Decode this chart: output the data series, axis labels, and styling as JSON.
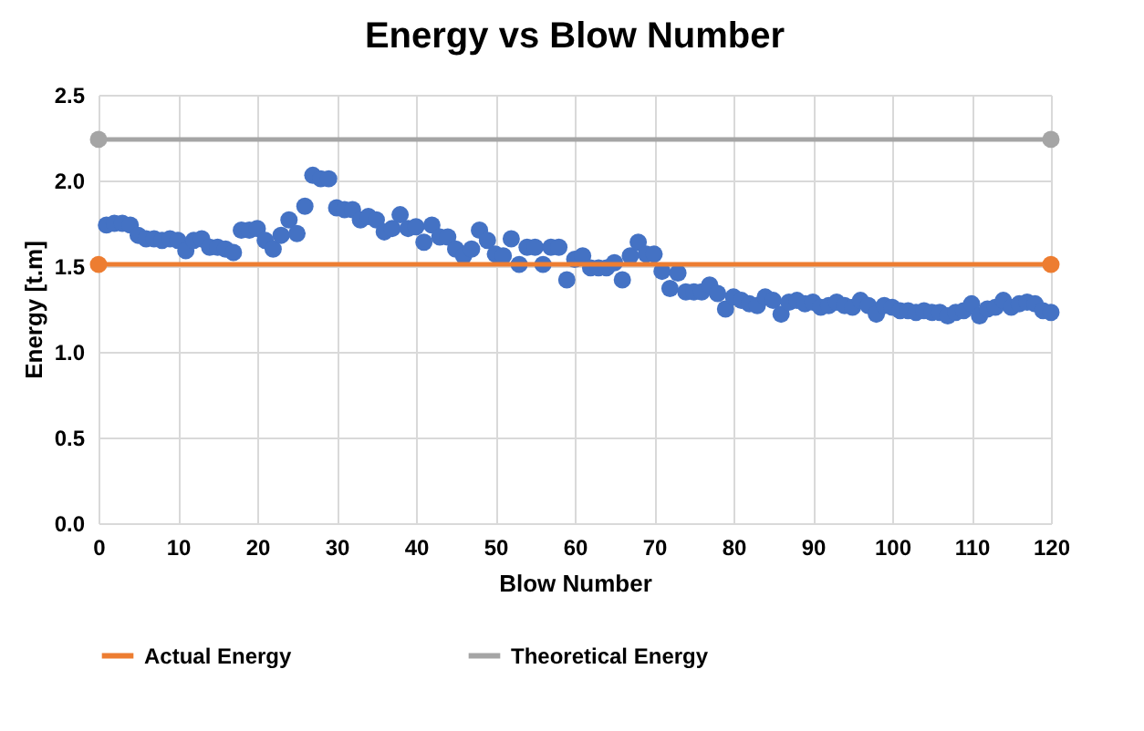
{
  "chart_data": {
    "type": "scatter",
    "title": "Energy vs Blow Number",
    "xlabel": "Blow Number",
    "ylabel": "Energy [t.m]",
    "xlim": [
      0,
      120
    ],
    "xticks": [
      0,
      10,
      20,
      30,
      40,
      50,
      60,
      70,
      80,
      90,
      100,
      110,
      120
    ],
    "ylim": [
      0,
      2.5
    ],
    "yticks": [
      {
        "value": 0,
        "label": "0.0"
      },
      0.5,
      {
        "value": 1,
        "label": "1.0"
      },
      1.5,
      {
        "value": 2,
        "label": "2.0"
      },
      2.5
    ],
    "grid": true,
    "legend": "bottom",
    "marker": "circle",
    "series": [
      {
        "color": "#4472c4",
        "x": [
          1,
          2,
          3,
          4,
          5,
          6,
          7,
          8,
          9,
          10,
          11,
          12,
          13,
          14,
          15,
          16,
          17,
          18,
          19,
          20,
          21,
          22,
          23,
          24,
          25,
          26,
          27,
          28,
          29,
          30,
          31,
          32,
          33,
          34,
          35,
          36,
          37,
          38,
          39,
          40,
          41,
          42,
          43,
          44,
          45,
          46,
          47,
          48,
          49,
          50,
          51,
          52,
          53,
          54,
          55,
          56,
          57,
          58,
          59,
          60,
          61,
          62,
          63,
          64,
          65,
          66,
          67,
          68,
          69,
          70,
          71,
          72,
          73,
          74,
          75,
          76,
          77,
          78,
          79,
          80,
          81,
          82,
          83,
          84,
          85,
          86,
          87,
          88,
          89,
          90,
          91,
          92,
          93,
          94,
          95,
          96,
          97,
          98,
          99,
          100,
          101,
          102,
          103,
          104,
          105,
          106,
          107,
          108,
          109,
          110,
          111,
          112,
          113,
          114,
          115,
          116,
          117,
          118,
          119,
          120
        ],
        "values": [
          1.74,
          1.75,
          1.75,
          1.74,
          1.68,
          1.66,
          1.66,
          1.65,
          1.66,
          1.65,
          1.59,
          1.65,
          1.66,
          1.61,
          1.61,
          1.6,
          1.58,
          1.71,
          1.71,
          1.72,
          1.65,
          1.6,
          1.68,
          1.77,
          1.69,
          1.85,
          2.03,
          2.01,
          2.01,
          1.84,
          1.83,
          1.83,
          1.77,
          1.79,
          1.77,
          1.7,
          1.72,
          1.8,
          1.72,
          1.73,
          1.64,
          1.74,
          1.67,
          1.67,
          1.6,
          1.56,
          1.6,
          1.71,
          1.65,
          1.57,
          1.56,
          1.66,
          1.51,
          1.61,
          1.61,
          1.51,
          1.61,
          1.61,
          1.42,
          1.54,
          1.56,
          1.49,
          1.49,
          1.49,
          1.52,
          1.42,
          1.56,
          1.64,
          1.57,
          1.57,
          1.47,
          1.37,
          1.46,
          1.35,
          1.35,
          1.35,
          1.39,
          1.34,
          1.25,
          1.32,
          1.3,
          1.28,
          1.27,
          1.32,
          1.3,
          1.22,
          1.29,
          1.3,
          1.28,
          1.29,
          1.26,
          1.27,
          1.29,
          1.27,
          1.26,
          1.3,
          1.27,
          1.22,
          1.27,
          1.26,
          1.24,
          1.24,
          1.23,
          1.24,
          1.23,
          1.23,
          1.21,
          1.23,
          1.24,
          1.28,
          1.21,
          1.25,
          1.26,
          1.3,
          1.26,
          1.28,
          1.29,
          1.28,
          1.24,
          1.23
        ]
      },
      {
        "type": "line",
        "name": "Actual Energy",
        "color": "#ed7d31",
        "x": [
          0,
          120
        ],
        "values": [
          1.51,
          1.51
        ]
      },
      {
        "type": "line",
        "name": "Theoretical Energy",
        "color": "#a5a5a5",
        "x": [
          0,
          120
        ],
        "values": [
          2.24,
          2.24
        ]
      }
    ]
  }
}
